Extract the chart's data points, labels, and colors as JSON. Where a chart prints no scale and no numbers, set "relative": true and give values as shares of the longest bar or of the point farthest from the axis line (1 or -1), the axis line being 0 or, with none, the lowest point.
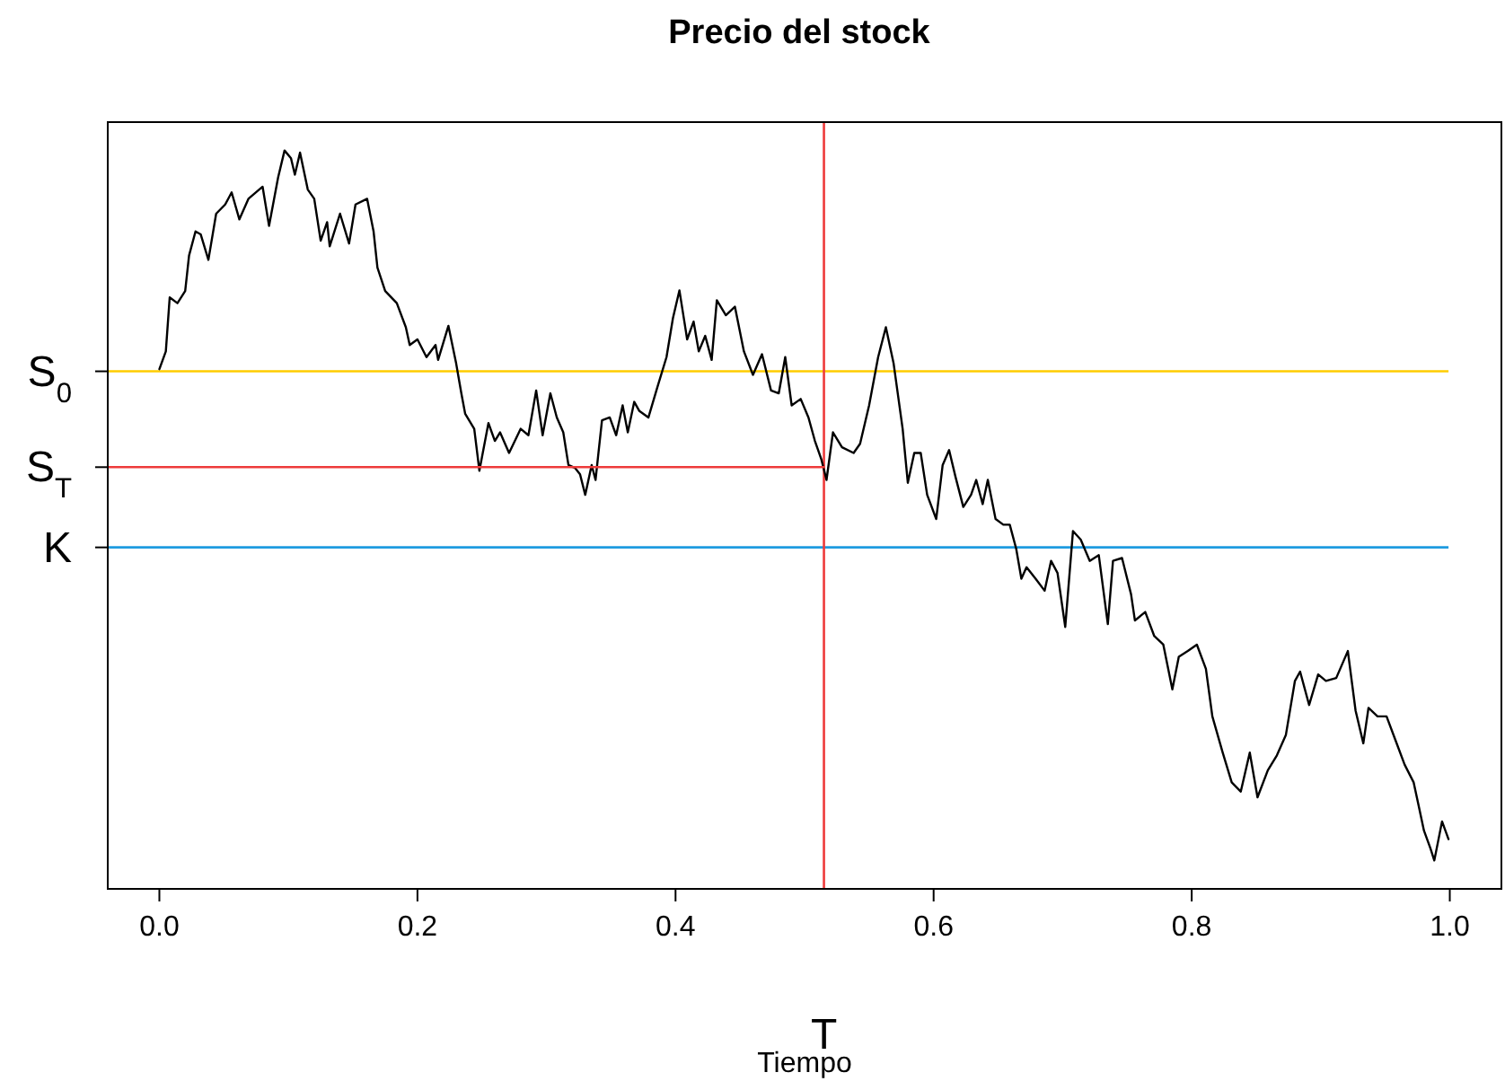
{
  "chart_data": {
    "type": "line",
    "title": "Precio del stock",
    "xlabel": "Tiempo",
    "relative": true,
    "xlim": [
      -0.04,
      1.04
    ],
    "xticks": [
      {
        "value": 0,
        "label": "0.0"
      },
      0.2,
      0.4,
      0.6,
      0.8,
      {
        "value": 1,
        "label": "1.0"
      }
    ],
    "grid": false,
    "line_style": "solid",
    "series": [
      {
        "color": "#000000",
        "x": [
          0,
          0.005,
          0.008,
          0.014,
          0.02,
          0.023,
          0.028,
          0.032,
          0.038,
          0.044,
          0.051,
          0.056,
          0.062,
          0.069,
          0.08,
          0.085,
          0.092,
          0.097,
          0.102,
          0.105,
          0.109,
          0.115,
          0.12,
          0.125,
          0.13,
          0.132,
          0.14,
          0.147,
          0.152,
          0.161,
          0.166,
          0.169,
          0.175,
          0.184,
          0.191,
          0.194,
          0.2,
          0.207,
          0.214,
          0.216,
          0.224,
          0.23,
          0.234,
          0.237,
          0.244,
          0.248,
          0.255,
          0.26,
          0.264,
          0.271,
          0.28,
          0.286,
          0.292,
          0.297,
          0.303,
          0.308,
          0.313,
          0.317,
          0.322,
          0.326,
          0.33,
          0.335,
          0.338,
          0.343,
          0.349,
          0.354,
          0.359,
          0.363,
          0.368,
          0.372,
          0.379,
          0.386,
          0.393,
          0.398,
          0.403,
          0.409,
          0.414,
          0.418,
          0.423,
          0.428,
          0.432,
          0.439,
          0.446,
          0.453,
          0.46,
          0.467,
          0.474,
          0.48,
          0.485,
          0.49,
          0.497,
          0.503,
          0.508,
          0.513,
          0.517,
          0.522,
          0.529,
          0.538,
          0.543,
          0.55,
          0.557,
          0.563,
          0.569,
          0.576,
          0.58,
          0.585,
          0.59,
          0.595,
          0.602,
          0.607,
          0.612,
          0.617,
          0.623,
          0.629,
          0.633,
          0.638,
          0.642,
          0.648,
          0.654,
          0.659,
          0.664,
          0.668,
          0.672,
          0.679,
          0.686,
          0.691,
          0.696,
          0.702,
          0.708,
          0.714,
          0.721,
          0.728,
          0.735,
          0.739,
          0.746,
          0.753,
          0.756,
          0.764,
          0.771,
          0.778,
          0.785,
          0.79,
          0.797,
          0.804,
          0.811,
          0.816,
          0.824,
          0.831,
          0.838,
          0.845,
          0.851,
          0.859,
          0.866,
          0.873,
          0.88,
          0.884,
          0.891,
          0.898,
          0.904,
          0.912,
          0.921,
          0.927,
          0.933,
          0.937,
          0.944,
          0.951,
          0.958,
          0.965,
          0.972,
          0.976,
          0.98,
          0.985,
          0.988,
          0.994,
          0.999
        ],
        "values": [
          0.692,
          0.717,
          0.793,
          0.785,
          0.802,
          0.852,
          0.886,
          0.882,
          0.846,
          0.911,
          0.924,
          0.941,
          0.903,
          0.932,
          0.949,
          0.894,
          0.962,
          1,
          0.989,
          0.966,
          0.997,
          0.945,
          0.932,
          0.873,
          0.899,
          0.865,
          0.911,
          0.869,
          0.924,
          0.932,
          0.886,
          0.835,
          0.802,
          0.785,
          0.751,
          0.726,
          0.734,
          0.709,
          0.726,
          0.705,
          0.753,
          0.7,
          0.658,
          0.629,
          0.608,
          0.549,
          0.616,
          0.591,
          0.603,
          0.574,
          0.608,
          0.599,
          0.662,
          0.599,
          0.658,
          0.624,
          0.603,
          0.557,
          0.553,
          0.544,
          0.515,
          0.557,
          0.536,
          0.62,
          0.624,
          0.599,
          0.641,
          0.603,
          0.646,
          0.633,
          0.624,
          0.667,
          0.709,
          0.764,
          0.803,
          0.734,
          0.759,
          0.717,
          0.739,
          0.705,
          0.789,
          0.768,
          0.78,
          0.717,
          0.684,
          0.713,
          0.662,
          0.658,
          0.709,
          0.641,
          0.65,
          0.624,
          0.591,
          0.565,
          0.536,
          0.603,
          0.582,
          0.574,
          0.587,
          0.641,
          0.709,
          0.751,
          0.7,
          0.608,
          0.532,
          0.574,
          0.574,
          0.515,
          0.481,
          0.557,
          0.578,
          0.54,
          0.498,
          0.515,
          0.536,
          0.502,
          0.536,
          0.481,
          0.473,
          0.473,
          0.439,
          0.397,
          0.413,
          0.397,
          0.38,
          0.422,
          0.405,
          0.329,
          0.464,
          0.452,
          0.422,
          0.43,
          0.333,
          0.422,
          0.426,
          0.375,
          0.338,
          0.35,
          0.316,
          0.304,
          0.241,
          0.287,
          0.295,
          0.304,
          0.27,
          0.203,
          0.152,
          0.11,
          0.097,
          0.152,
          0.089,
          0.127,
          0.148,
          0.177,
          0.253,
          0.266,
          0.219,
          0.262,
          0.253,
          0.257,
          0.295,
          0.211,
          0.165,
          0.215,
          0.203,
          0.203,
          0.169,
          0.135,
          0.11,
          0.076,
          0.042,
          0.017,
          0,
          0.055,
          0.03
        ]
      },
      {
        "color": "#ee3b3b",
        "x": [
          -0.04,
          0.515
        ],
        "values": [
          0.554,
          0.554
        ]
      }
    ],
    "ref_lines": [
      {
        "axis": "y",
        "value": 0.689,
        "label": "S$_{0}$",
        "color": "#ffcc00"
      },
      {
        "axis": "y",
        "value": 0.441,
        "label": "K",
        "color": "#1e9be0"
      },
      {
        "axis": "x",
        "value": 0.515,
        "label": "T",
        "color": "#ee3b3b"
      }
    ],
    "annotations": [
      {
        "text": "S$_{T}$",
        "x": -0.04,
        "y": 0.554
      }
    ]
  }
}
